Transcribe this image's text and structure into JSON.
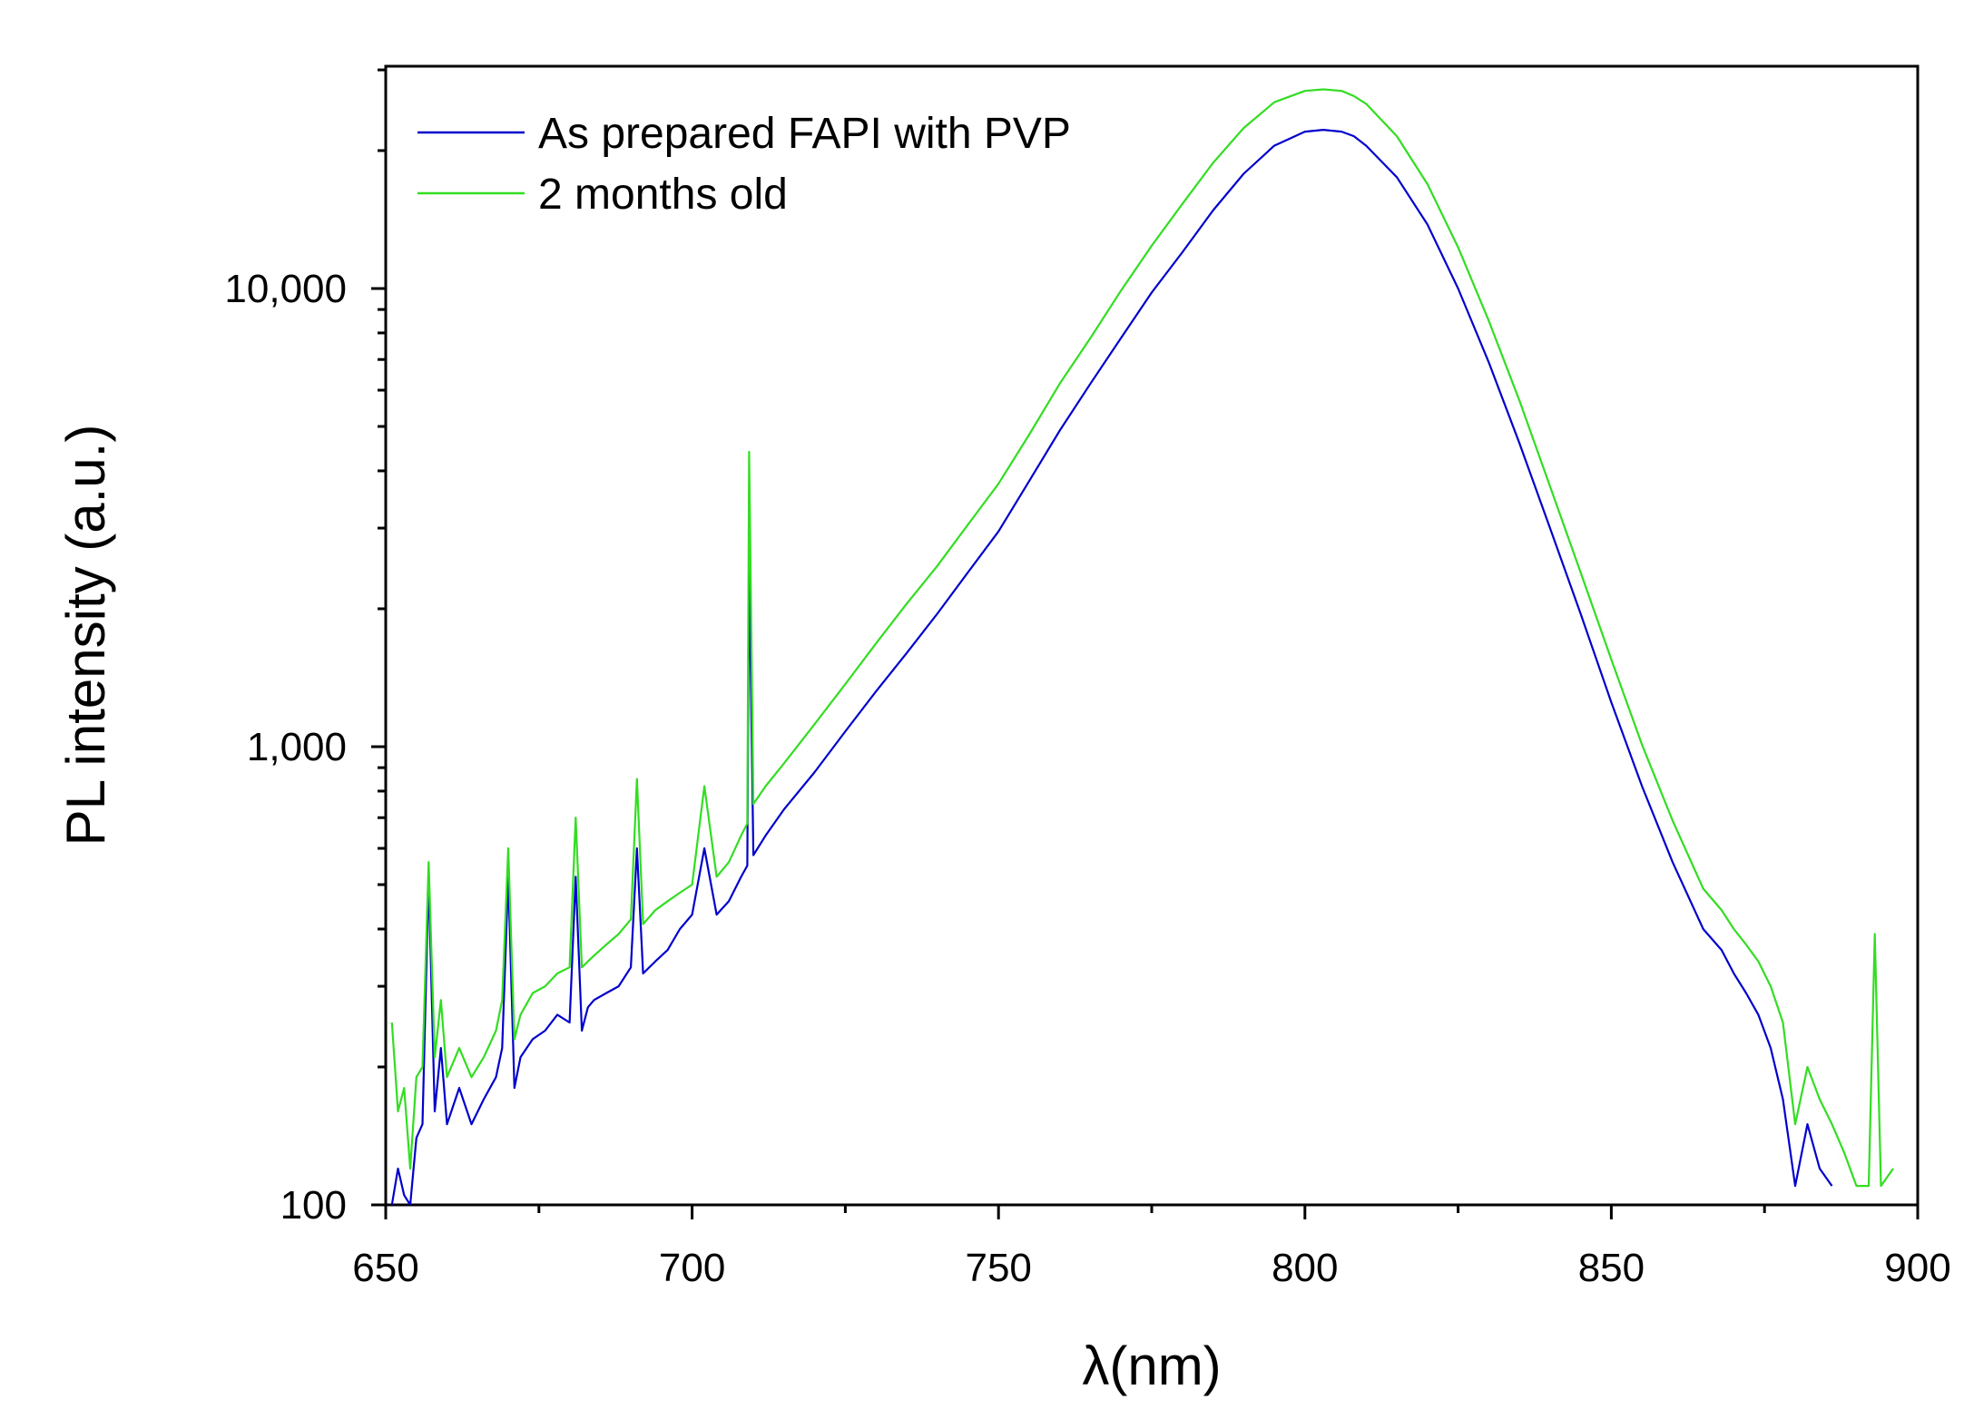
{
  "chart_data": {
    "type": "line",
    "title": "",
    "xlabel": "λ(nm)",
    "ylabel": "PL intensity (a.u.)",
    "xlim": [
      650,
      900
    ],
    "ylim": [
      100,
      30000
    ],
    "yscale": "log",
    "x_ticks": [
      650,
      700,
      750,
      800,
      850,
      900
    ],
    "x_tick_labels": [
      "650",
      "700",
      "750",
      "800",
      "850",
      "900"
    ],
    "y_ticks": [
      100,
      1000,
      10000
    ],
    "y_tick_labels": [
      "100",
      "1,000",
      "10,000"
    ],
    "grid": false,
    "legend_position": "top-left",
    "series": [
      {
        "name": "As prepared FAPI with PVP",
        "color": "#0000cc",
        "x": [
          651,
          652,
          653,
          654,
          655,
          656,
          657,
          658,
          659,
          660,
          662,
          664,
          666,
          668,
          669,
          670,
          671,
          672,
          674,
          676,
          678,
          680,
          681,
          682,
          683,
          684,
          686,
          688,
          690,
          691,
          692,
          694,
          696,
          698,
          700,
          702,
          704,
          706,
          708,
          709,
          709.3,
          710,
          712,
          715,
          720,
          725,
          730,
          735,
          740,
          745,
          750,
          755,
          760,
          765,
          770,
          775,
          780,
          785,
          790,
          795,
          800,
          803,
          806,
          808,
          810,
          815,
          820,
          825,
          830,
          835,
          840,
          845,
          850,
          855,
          860,
          865,
          868,
          870,
          872,
          874,
          876,
          878,
          880,
          882,
          884,
          886
        ],
        "y": [
          100,
          120,
          105,
          100,
          140,
          150,
          520,
          160,
          220,
          150,
          180,
          150,
          170,
          190,
          220,
          520,
          180,
          210,
          230,
          240,
          260,
          250,
          520,
          240,
          270,
          280,
          290,
          300,
          330,
          600,
          320,
          340,
          360,
          400,
          430,
          600,
          430,
          460,
          520,
          550,
          2600,
          580,
          640,
          730,
          880,
          1080,
          1320,
          1600,
          1950,
          2400,
          2950,
          3800,
          4900,
          6200,
          7800,
          9800,
          12000,
          14800,
          17800,
          20500,
          22000,
          22200,
          22000,
          21500,
          20500,
          17500,
          13800,
          10000,
          6900,
          4600,
          3000,
          1950,
          1250,
          820,
          560,
          400,
          360,
          320,
          290,
          260,
          220,
          170,
          110,
          150,
          120,
          110
        ]
      },
      {
        "name": "2 months old",
        "color": "#33dd22",
        "x": [
          651,
          652,
          653,
          654,
          655,
          656,
          657,
          658,
          659,
          660,
          662,
          664,
          666,
          668,
          669,
          670,
          671,
          672,
          674,
          676,
          678,
          680,
          681,
          682,
          683,
          684,
          686,
          688,
          690,
          691,
          692,
          694,
          696,
          698,
          700,
          702,
          704,
          706,
          708,
          709,
          709.3,
          710,
          712,
          715,
          720,
          725,
          730,
          735,
          740,
          745,
          750,
          755,
          760,
          765,
          770,
          775,
          780,
          785,
          790,
          795,
          800,
          803,
          806,
          808,
          810,
          815,
          820,
          825,
          830,
          835,
          840,
          845,
          850,
          855,
          860,
          865,
          868,
          870,
          872,
          874,
          876,
          878,
          880,
          882,
          884,
          886,
          888,
          890,
          892,
          893,
          894,
          896
        ],
        "y": [
          250,
          160,
          180,
          120,
          190,
          200,
          560,
          210,
          280,
          190,
          220,
          190,
          210,
          240,
          280,
          600,
          230,
          260,
          290,
          300,
          320,
          330,
          700,
          330,
          340,
          350,
          370,
          390,
          420,
          850,
          410,
          440,
          460,
          480,
          500,
          820,
          520,
          560,
          640,
          680,
          4400,
          750,
          820,
          920,
          1120,
          1370,
          1680,
          2050,
          2480,
          3050,
          3750,
          4800,
          6200,
          7800,
          9900,
          12400,
          15300,
          18800,
          22400,
          25500,
          27000,
          27200,
          27000,
          26300,
          25300,
          21500,
          16900,
          12300,
          8500,
          5700,
          3700,
          2400,
          1550,
          1010,
          690,
          490,
          440,
          400,
          370,
          340,
          300,
          250,
          150,
          200,
          170,
          150,
          130,
          110,
          110,
          390,
          110,
          120
        ]
      }
    ]
  }
}
